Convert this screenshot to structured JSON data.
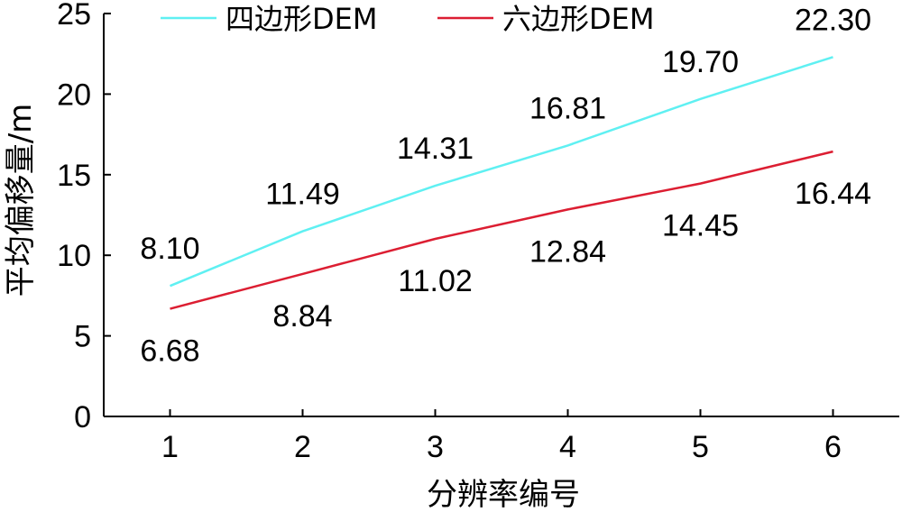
{
  "chart_data": {
    "type": "line",
    "categories": [
      "1",
      "2",
      "3",
      "4",
      "5",
      "6"
    ],
    "x": [
      1,
      2,
      3,
      4,
      5,
      6
    ],
    "series": [
      {
        "name": "四边形DEM",
        "values": [
          8.1,
          11.49,
          14.31,
          16.81,
          19.7,
          22.3
        ],
        "labels": [
          "8.10",
          "11.49",
          "14.31",
          "16.81",
          "19.70",
          "22.30"
        ],
        "label_position": "above",
        "color": "#5ff0f2"
      },
      {
        "name": "六边形DEM",
        "values": [
          6.68,
          8.84,
          11.02,
          12.84,
          14.45,
          16.44
        ],
        "labels": [
          "6.68",
          "8.84",
          "11.02",
          "12.84",
          "14.45",
          "16.44"
        ],
        "label_position": "below",
        "color": "#dc1e32"
      }
    ],
    "xlabel": "分辨率编号",
    "ylabel": "平均偏移量/m",
    "ylim": [
      0,
      25
    ],
    "yticks": [
      "0",
      "5",
      "10",
      "15",
      "20",
      "25"
    ],
    "xticks": [
      "1",
      "2",
      "3",
      "4",
      "5",
      "6"
    ],
    "grid": false,
    "legend_position": "top"
  }
}
